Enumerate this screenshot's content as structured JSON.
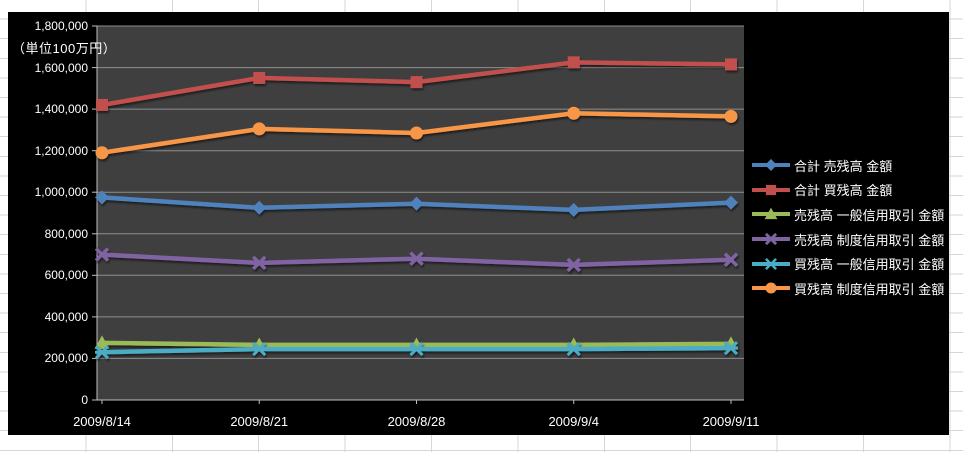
{
  "window": {
    "description": "spreadsheet with embedded dark line chart"
  },
  "chart_data": {
    "type": "line",
    "title": "",
    "unit_label": "（単位100万円）",
    "categories": [
      "2009/8/14",
      "2009/8/21",
      "2009/8/28",
      "2009/9/4",
      "2009/9/11"
    ],
    "series": [
      {
        "name": "合計 売残高 金額",
        "color": "#4F81BD",
        "marker": "diamond",
        "values": [
          975000,
          925000,
          945000,
          915000,
          950000
        ]
      },
      {
        "name": "合計 買残高 金額",
        "color": "#C0504D",
        "marker": "square",
        "values": [
          1420000,
          1550000,
          1530000,
          1625000,
          1615000
        ]
      },
      {
        "name": "売残高 一般信用取引 金額",
        "color": "#9BBB59",
        "marker": "triangle",
        "values": [
          275000,
          265000,
          265000,
          265000,
          270000
        ]
      },
      {
        "name": "売残高 制度信用取引 金額",
        "color": "#8064A2",
        "marker": "x",
        "values": [
          700000,
          660000,
          680000,
          650000,
          675000
        ]
      },
      {
        "name": "買残高 一般信用取引 金額",
        "color": "#4BACC6",
        "marker": "asterisk",
        "values": [
          230000,
          245000,
          245000,
          245000,
          250000
        ]
      },
      {
        "name": "買残高 制度信用取引 金額",
        "color": "#F79646",
        "marker": "circle",
        "values": [
          1190000,
          1305000,
          1285000,
          1380000,
          1365000
        ]
      }
    ],
    "ylim": [
      0,
      1800000
    ],
    "ytick_step": 200000,
    "ytick_labels": [
      "0",
      "200,000",
      "400,000",
      "600,000",
      "800,000",
      "1,000,000",
      "1,200,000",
      "1,400,000",
      "1,600,000",
      "1,800,000"
    ],
    "legend_position": "right",
    "grid": true,
    "chart_bg": "#000000",
    "plot_bg": "#3F3F3F",
    "gridline_color": "#8F8F8F",
    "axis_color": "#BFBFBF",
    "text_color": "#FFFFFF"
  }
}
